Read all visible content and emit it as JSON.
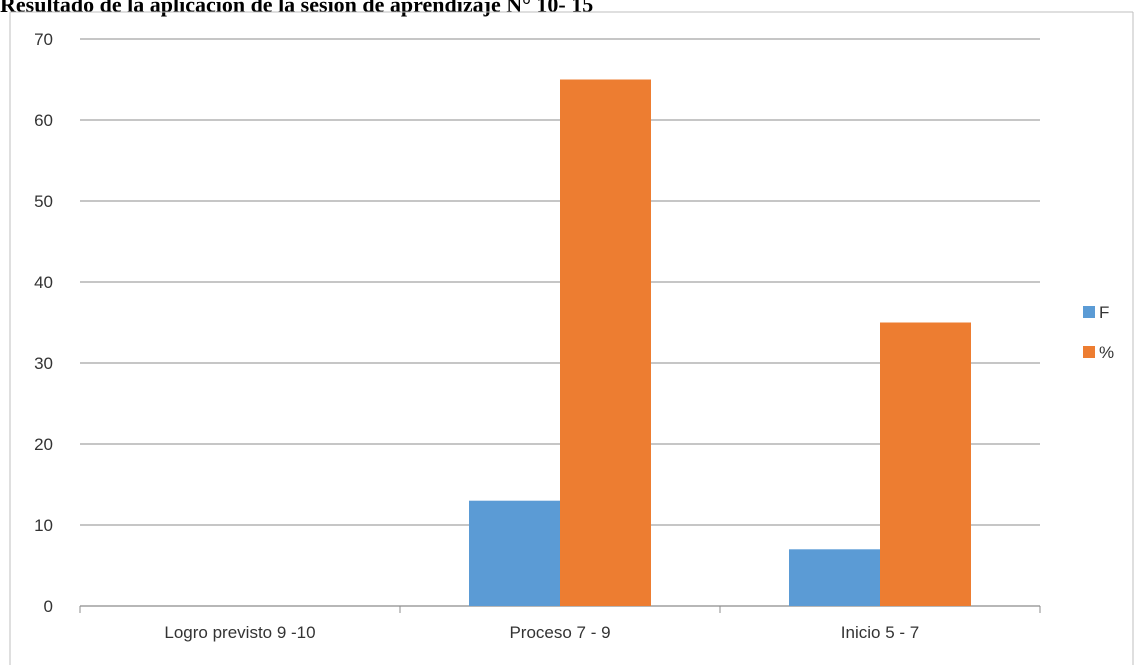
{
  "title": "Resultado de la aplicación de la sesión de aprendizaje N° 10- 15",
  "chart_data": {
    "type": "bar",
    "title": "Resultado de la aplicación de la sesión de aprendizaje N° 10- 15",
    "xlabel": "",
    "ylabel": "",
    "categories": [
      "Logro previsto 9 -10",
      "Proceso 7 - 9",
      "Inicio 5 - 7"
    ],
    "series": [
      {
        "name": "F",
        "values": [
          0,
          13,
          7
        ],
        "color": "#5b9bd5"
      },
      {
        "name": "%",
        "values": [
          0,
          65,
          35
        ],
        "color": "#ed7d31"
      }
    ],
    "ylim": [
      0,
      70
    ],
    "yticks": [
      0,
      10,
      20,
      30,
      40,
      50,
      60,
      70
    ],
    "grid": true,
    "legend_position": "right"
  }
}
